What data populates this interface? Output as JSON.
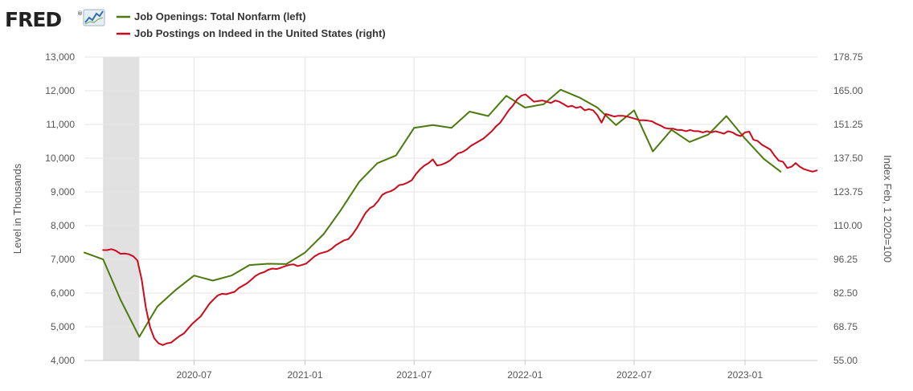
{
  "logo": {
    "text": "FRED",
    "registered": "®"
  },
  "chart_data": {
    "type": "line",
    "title": "",
    "xlabel": "",
    "ylabel_left": "Level in Thousands",
    "ylabel_right": "Index Feb, 1 2020=100",
    "x_range": [
      "2020-01",
      "2023-05"
    ],
    "ylim_left": [
      4000,
      13000
    ],
    "ylim_right": [
      55,
      178.75
    ],
    "left_ticks": [
      "4,000",
      "5,000",
      "6,000",
      "7,000",
      "8,000",
      "9,000",
      "10,000",
      "11,000",
      "12,000",
      "13,000"
    ],
    "right_ticks": [
      "55.00",
      "68.75",
      "82.50",
      "96.25",
      "110.00",
      "123.75",
      "137.50",
      "151.25",
      "165.00",
      "178.75"
    ],
    "x_ticks": [
      {
        "date": "2020-07",
        "label": "2020-07"
      },
      {
        "date": "2021-01",
        "label": "2021-01"
      },
      {
        "date": "2021-07",
        "label": "2021-07"
      },
      {
        "date": "2022-01",
        "label": "2022-01"
      },
      {
        "date": "2022-07",
        "label": "2022-07"
      },
      {
        "date": "2023-01",
        "label": "2023-01"
      }
    ],
    "grid": true,
    "legend_position": "top-left",
    "recession": {
      "start": "2020-02",
      "end": "2020-04"
    },
    "series": [
      {
        "name": "Job Openings: Total Nonfarm (left)",
        "axis": "left",
        "color": "#4b7a0f",
        "points": [
          [
            "2020-01-01",
            7200
          ],
          [
            "2020-02-01",
            7000
          ],
          [
            "2020-03-01",
            5800
          ],
          [
            "2020-04-01",
            4700
          ],
          [
            "2020-05-01",
            5600
          ],
          [
            "2020-06-01",
            6100
          ],
          [
            "2020-07-01",
            6520
          ],
          [
            "2020-08-01",
            6370
          ],
          [
            "2020-09-01",
            6520
          ],
          [
            "2020-10-01",
            6830
          ],
          [
            "2020-11-01",
            6870
          ],
          [
            "2020-12-01",
            6860
          ],
          [
            "2021-01-01",
            7200
          ],
          [
            "2021-02-01",
            7750
          ],
          [
            "2021-03-01",
            8450
          ],
          [
            "2021-04-01",
            9300
          ],
          [
            "2021-05-01",
            9850
          ],
          [
            "2021-06-01",
            10080
          ],
          [
            "2021-07-01",
            10900
          ],
          [
            "2021-08-01",
            10980
          ],
          [
            "2021-09-01",
            10900
          ],
          [
            "2021-10-01",
            11380
          ],
          [
            "2021-11-01",
            11250
          ],
          [
            "2021-12-01",
            11850
          ],
          [
            "2022-01-01",
            11500
          ],
          [
            "2022-02-01",
            11600
          ],
          [
            "2022-03-01",
            12030
          ],
          [
            "2022-04-01",
            11800
          ],
          [
            "2022-05-01",
            11500
          ],
          [
            "2022-06-01",
            10980
          ],
          [
            "2022-07-01",
            11420
          ],
          [
            "2022-08-01",
            10200
          ],
          [
            "2022-09-01",
            10840
          ],
          [
            "2022-10-01",
            10480
          ],
          [
            "2022-11-01",
            10700
          ],
          [
            "2022-12-01",
            11250
          ],
          [
            "2023-01-01",
            10580
          ],
          [
            "2023-02-01",
            9980
          ],
          [
            "2023-03-01",
            9600
          ]
        ]
      },
      {
        "name": "Job Postings on Indeed in the United States (right)",
        "axis": "right",
        "color": "#cc0a1c",
        "points": [
          [
            "2020-02-01",
            100.0
          ],
          [
            "2020-02-08",
            100.0
          ],
          [
            "2020-02-15",
            100.4
          ],
          [
            "2020-02-22",
            99.8
          ],
          [
            "2020-03-01",
            98.5
          ],
          [
            "2020-03-08",
            98.6
          ],
          [
            "2020-03-15",
            98.3
          ],
          [
            "2020-03-22",
            97.5
          ],
          [
            "2020-03-29",
            95.8
          ],
          [
            "2020-04-05",
            88.0
          ],
          [
            "2020-04-12",
            76.5
          ],
          [
            "2020-04-19",
            68.5
          ],
          [
            "2020-04-26",
            64.0
          ],
          [
            "2020-05-03",
            62.0
          ],
          [
            "2020-05-10",
            61.3
          ],
          [
            "2020-05-17",
            62.0
          ],
          [
            "2020-05-24",
            62.3
          ],
          [
            "2020-05-31",
            63.7
          ],
          [
            "2020-06-07",
            65.0
          ],
          [
            "2020-06-14",
            66.0
          ],
          [
            "2020-06-21",
            68.0
          ],
          [
            "2020-06-28",
            70.0
          ],
          [
            "2020-07-05",
            71.5
          ],
          [
            "2020-07-12",
            73.0
          ],
          [
            "2020-07-19",
            75.5
          ],
          [
            "2020-07-26",
            78.0
          ],
          [
            "2020-08-02",
            79.8
          ],
          [
            "2020-08-09",
            81.5
          ],
          [
            "2020-08-16",
            82.2
          ],
          [
            "2020-08-23",
            82.0
          ],
          [
            "2020-08-30",
            82.5
          ],
          [
            "2020-09-06",
            83.0
          ],
          [
            "2020-09-13",
            84.5
          ],
          [
            "2020-09-20",
            85.5
          ],
          [
            "2020-09-27",
            86.5
          ],
          [
            "2020-10-04",
            88.0
          ],
          [
            "2020-10-11",
            89.5
          ],
          [
            "2020-10-18",
            90.5
          ],
          [
            "2020-10-25",
            91.0
          ],
          [
            "2020-11-01",
            92.0
          ],
          [
            "2020-11-08",
            92.5
          ],
          [
            "2020-11-15",
            92.3
          ],
          [
            "2020-11-22",
            92.8
          ],
          [
            "2020-11-29",
            93.5
          ],
          [
            "2020-12-06",
            94.0
          ],
          [
            "2020-12-13",
            94.2
          ],
          [
            "2020-12-20",
            93.5
          ],
          [
            "2020-12-27",
            94.0
          ],
          [
            "2021-01-03",
            94.5
          ],
          [
            "2021-01-10",
            96.0
          ],
          [
            "2021-01-17",
            97.5
          ],
          [
            "2021-01-24",
            98.5
          ],
          [
            "2021-01-31",
            99.0
          ],
          [
            "2021-02-07",
            99.5
          ],
          [
            "2021-02-14",
            100.5
          ],
          [
            "2021-02-21",
            102.0
          ],
          [
            "2021-02-28",
            103.0
          ],
          [
            "2021-03-07",
            104.0
          ],
          [
            "2021-03-14",
            104.5
          ],
          [
            "2021-03-21",
            106.5
          ],
          [
            "2021-03-28",
            109.0
          ],
          [
            "2021-04-04",
            112.0
          ],
          [
            "2021-04-11",
            115.0
          ],
          [
            "2021-04-18",
            117.0
          ],
          [
            "2021-04-25",
            118.0
          ],
          [
            "2021-05-02",
            120.0
          ],
          [
            "2021-05-09",
            122.5
          ],
          [
            "2021-05-16",
            123.5
          ],
          [
            "2021-05-23",
            124.0
          ],
          [
            "2021-05-30",
            125.0
          ],
          [
            "2021-06-06",
            126.5
          ],
          [
            "2021-06-13",
            126.8
          ],
          [
            "2021-06-20",
            127.5
          ],
          [
            "2021-06-27",
            128.5
          ],
          [
            "2021-07-04",
            131.0
          ],
          [
            "2021-07-11",
            133.0
          ],
          [
            "2021-07-18",
            134.5
          ],
          [
            "2021-07-25",
            135.5
          ],
          [
            "2021-08-01",
            137.0
          ],
          [
            "2021-08-08",
            134.5
          ],
          [
            "2021-08-15",
            134.8
          ],
          [
            "2021-08-22",
            135.5
          ],
          [
            "2021-08-29",
            136.5
          ],
          [
            "2021-09-05",
            138.0
          ],
          [
            "2021-09-12",
            139.5
          ],
          [
            "2021-09-19",
            140.0
          ],
          [
            "2021-09-26",
            141.0
          ],
          [
            "2021-10-03",
            142.5
          ],
          [
            "2021-10-10",
            143.5
          ],
          [
            "2021-10-17",
            144.5
          ],
          [
            "2021-10-24",
            145.5
          ],
          [
            "2021-10-31",
            147.0
          ],
          [
            "2021-11-07",
            148.5
          ],
          [
            "2021-11-14",
            150.5
          ],
          [
            "2021-11-21",
            152.0
          ],
          [
            "2021-11-28",
            154.5
          ],
          [
            "2021-12-05",
            157.0
          ],
          [
            "2021-12-12",
            159.0
          ],
          [
            "2021-12-19",
            161.5
          ],
          [
            "2021-12-26",
            163.0
          ],
          [
            "2022-01-02",
            163.5
          ],
          [
            "2022-01-09",
            162.0
          ],
          [
            "2022-01-16",
            160.5
          ],
          [
            "2022-01-23",
            160.8
          ],
          [
            "2022-01-30",
            161.0
          ],
          [
            "2022-02-06",
            160.5
          ],
          [
            "2022-02-13",
            160.0
          ],
          [
            "2022-02-20",
            161.0
          ],
          [
            "2022-02-27",
            160.5
          ],
          [
            "2022-03-06",
            159.5
          ],
          [
            "2022-03-13",
            158.5
          ],
          [
            "2022-03-20",
            158.8
          ],
          [
            "2022-03-27",
            158.0
          ],
          [
            "2022-04-03",
            158.5
          ],
          [
            "2022-04-10",
            157.0
          ],
          [
            "2022-04-17",
            157.5
          ],
          [
            "2022-04-24",
            157.0
          ],
          [
            "2022-05-01",
            155.0
          ],
          [
            "2022-05-08",
            152.0
          ],
          [
            "2022-05-15",
            155.5
          ],
          [
            "2022-05-22",
            155.0
          ],
          [
            "2022-05-29",
            154.5
          ],
          [
            "2022-06-05",
            154.8
          ],
          [
            "2022-06-12",
            154.8
          ],
          [
            "2022-06-19",
            154.5
          ],
          [
            "2022-06-26",
            154.0
          ],
          [
            "2022-07-03",
            153.5
          ],
          [
            "2022-07-10",
            153.0
          ],
          [
            "2022-07-17",
            153.0
          ],
          [
            "2022-07-24",
            152.8
          ],
          [
            "2022-07-31",
            152.5
          ],
          [
            "2022-08-07",
            151.5
          ],
          [
            "2022-08-14",
            150.8
          ],
          [
            "2022-08-21",
            149.8
          ],
          [
            "2022-08-28",
            149.5
          ],
          [
            "2022-09-04",
            149.5
          ],
          [
            "2022-09-11",
            149.0
          ],
          [
            "2022-09-18",
            149.0
          ],
          [
            "2022-09-25",
            148.5
          ],
          [
            "2022-10-02",
            149.0
          ],
          [
            "2022-10-09",
            148.5
          ],
          [
            "2022-10-16",
            148.5
          ],
          [
            "2022-10-23",
            148.0
          ],
          [
            "2022-10-30",
            148.5
          ],
          [
            "2022-11-06",
            148.0
          ],
          [
            "2022-11-13",
            148.5
          ],
          [
            "2022-11-20",
            148.0
          ],
          [
            "2022-11-27",
            147.5
          ],
          [
            "2022-12-04",
            148.5
          ],
          [
            "2022-12-11",
            148.0
          ],
          [
            "2022-12-18",
            147.0
          ],
          [
            "2022-12-25",
            146.5
          ],
          [
            "2023-01-01",
            148.0
          ],
          [
            "2023-01-08",
            148.3
          ],
          [
            "2023-01-15",
            145.0
          ],
          [
            "2023-01-22",
            144.5
          ],
          [
            "2023-01-29",
            143.0
          ],
          [
            "2023-02-05",
            142.0
          ],
          [
            "2023-02-12",
            141.0
          ],
          [
            "2023-02-19",
            138.5
          ],
          [
            "2023-02-26",
            136.5
          ],
          [
            "2023-03-05",
            136.0
          ],
          [
            "2023-03-12",
            133.5
          ],
          [
            "2023-03-19",
            134.0
          ],
          [
            "2023-03-26",
            135.5
          ],
          [
            "2023-04-02",
            134.0
          ],
          [
            "2023-04-09",
            133.0
          ],
          [
            "2023-04-16",
            132.5
          ],
          [
            "2023-04-23",
            132.0
          ],
          [
            "2023-04-30",
            132.5
          ]
        ]
      }
    ]
  }
}
